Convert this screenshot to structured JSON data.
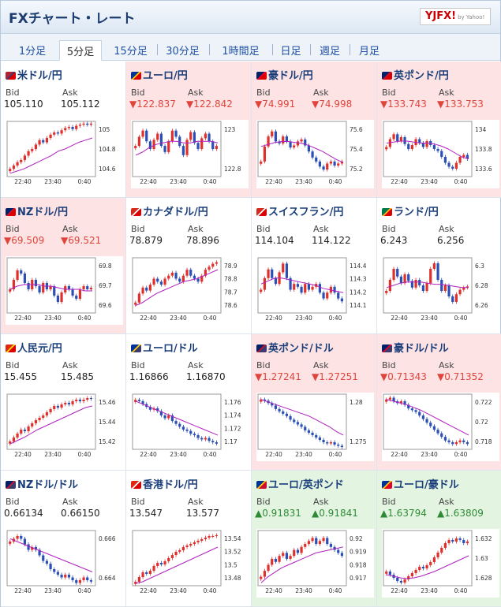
{
  "header": {
    "title": "FXチャート・レート",
    "logo_text": "YJFX!",
    "logo_sub": "by Yahoo!"
  },
  "tabs": [
    {
      "label": "1分足",
      "active": false
    },
    {
      "label": "5分足",
      "active": true
    },
    {
      "label": "15分足",
      "active": false
    },
    {
      "label": "30分足",
      "active": false
    },
    {
      "label": "1時間足",
      "active": false
    },
    {
      "label": "日足",
      "active": false
    },
    {
      "label": "週足",
      "active": false
    },
    {
      "label": "月足",
      "active": false
    }
  ],
  "labels": {
    "bid": "Bid",
    "ask": "Ask"
  },
  "colors": {
    "bull": "#e0302c",
    "bear": "#2c4fb6",
    "ma": "#b020c0",
    "down_bg": "#fde3e3",
    "up_bg": "#e3f5e1",
    "down_text": "#e0453d",
    "up_text": "#2e8a35"
  },
  "x_ticks": [
    "22:40",
    "23:40",
    "0:40"
  ],
  "pairs": [
    {
      "name": "米ドル/円",
      "flag": "us-jp-flag",
      "dir": "none",
      "bid": "105.110",
      "ask": "105.112",
      "y_ticks": [
        "105",
        "104.8",
        "104.6"
      ],
      "ylim": [
        104.55,
        105.05
      ],
      "candles": [
        104.62,
        104.65,
        104.68,
        104.7,
        104.74,
        104.78,
        104.8,
        104.84,
        104.88,
        104.86,
        104.9,
        104.93,
        104.95,
        104.94,
        104.97,
        104.99,
        105.0,
        104.98,
        105.01,
        105.02,
        105.03,
        105.02,
        105.03
      ],
      "ma": [
        104.58,
        104.6,
        104.62,
        104.65,
        104.68,
        104.71,
        104.74,
        104.78,
        104.8,
        104.83,
        104.86,
        104.88,
        104.9
      ]
    },
    {
      "name": "ユーロ/円",
      "flag": "eu-jp-flag",
      "dir": "down",
      "bid": "▼122.837",
      "ask": "▼122.842",
      "y_ticks": [
        "123",
        "122.8"
      ],
      "ylim": [
        122.72,
        123.08
      ],
      "candles": [
        122.92,
        122.98,
        123.02,
        122.95,
        122.9,
        122.96,
        123.0,
        122.92,
        122.88,
        122.95,
        123.02,
        122.98,
        122.92,
        122.86,
        122.96,
        123.01,
        122.94,
        122.9,
        122.97,
        123.0,
        122.95,
        122.9,
        122.92
      ],
      "ma": [
        122.86,
        122.88,
        122.91,
        122.93,
        122.94,
        122.95,
        122.95,
        122.94,
        122.94,
        122.95,
        122.95,
        122.95,
        122.94
      ]
    },
    {
      "name": "豪ドル/円",
      "flag": "au-jp-flag",
      "dir": "down",
      "bid": "▼74.991",
      "ask": "▼74.998",
      "y_ticks": [
        "75.6",
        "75.4",
        "75.2"
      ],
      "ylim": [
        75.15,
        75.7
      ],
      "candles": [
        75.3,
        75.45,
        75.55,
        75.6,
        75.5,
        75.48,
        75.55,
        75.5,
        75.44,
        75.46,
        75.5,
        75.52,
        75.46,
        75.4,
        75.34,
        75.3,
        75.25,
        75.22,
        75.28,
        75.3,
        75.26,
        75.28,
        75.3
      ],
      "ma": [
        75.45,
        75.47,
        75.49,
        75.5,
        75.5,
        75.49,
        75.48,
        75.46,
        75.43,
        75.4,
        75.36,
        75.32,
        75.29
      ]
    },
    {
      "name": "英ポンド/円",
      "flag": "gb-jp-flag",
      "dir": "down",
      "bid": "▼133.743",
      "ask": "▼133.753",
      "y_ticks": [
        "134",
        "133.8",
        "133.6"
      ],
      "ylim": [
        133.52,
        134.08
      ],
      "candles": [
        133.82,
        133.9,
        133.95,
        133.88,
        133.92,
        133.85,
        133.8,
        133.84,
        133.9,
        133.86,
        133.82,
        133.88,
        133.84,
        133.8,
        133.78,
        133.72,
        133.66,
        133.62,
        133.6,
        133.66,
        133.72,
        133.74,
        133.7
      ],
      "ma": [
        133.86,
        133.87,
        133.88,
        133.88,
        133.87,
        133.86,
        133.86,
        133.85,
        133.83,
        133.8,
        133.76,
        133.72,
        133.7
      ]
    },
    {
      "name": "NZドル/円",
      "flag": "nz-jp-flag",
      "dir": "down",
      "bid": "▼69.509",
      "ask": "▼69.521",
      "y_ticks": [
        "69.8",
        "69.7",
        "69.6"
      ],
      "ylim": [
        69.55,
        69.9
      ],
      "candles": [
        69.7,
        69.76,
        69.82,
        69.8,
        69.74,
        69.7,
        69.76,
        69.72,
        69.68,
        69.74,
        69.7,
        69.72,
        69.66,
        69.62,
        69.68,
        69.72,
        69.7,
        69.66,
        69.64,
        69.7,
        69.72,
        69.7,
        69.71
      ],
      "ma": [
        69.7,
        69.72,
        69.73,
        69.73,
        69.73,
        69.72,
        69.72,
        69.71,
        69.7,
        69.7,
        69.7,
        69.69,
        69.69
      ]
    },
    {
      "name": "カナダドル/円",
      "flag": "ca-jp-flag",
      "dir": "none",
      "bid": "78.879",
      "ask": "78.896",
      "y_ticks": [
        "78.9",
        "78.8",
        "78.7",
        "78.6"
      ],
      "ylim": [
        78.55,
        78.92
      ],
      "candles": [
        78.62,
        78.68,
        78.72,
        78.7,
        78.74,
        78.78,
        78.76,
        78.74,
        78.78,
        78.8,
        78.82,
        78.78,
        78.76,
        78.8,
        78.84,
        78.8,
        78.78,
        78.76,
        78.8,
        78.84,
        78.86,
        78.88,
        78.89
      ],
      "ma": [
        78.6,
        78.62,
        78.65,
        78.68,
        78.7,
        78.72,
        78.74,
        78.76,
        78.77,
        78.78,
        78.8,
        78.82,
        78.84
      ]
    },
    {
      "name": "スイスフラン/円",
      "flag": "ch-jp-flag",
      "dir": "none",
      "bid": "114.104",
      "ask": "114.122",
      "y_ticks": [
        "114.4",
        "114.3",
        "114.2",
        "114.1"
      ],
      "ylim": [
        114.06,
        114.44
      ],
      "candles": [
        114.22,
        114.3,
        114.36,
        114.3,
        114.26,
        114.34,
        114.4,
        114.3,
        114.22,
        114.26,
        114.24,
        114.2,
        114.26,
        114.22,
        114.24,
        114.26,
        114.2,
        114.16,
        114.2,
        114.24,
        114.2,
        114.16,
        114.14
      ],
      "ma": [
        114.26,
        114.28,
        114.3,
        114.3,
        114.29,
        114.28,
        114.27,
        114.26,
        114.25,
        114.23,
        114.22,
        114.21,
        114.2
      ]
    },
    {
      "name": "ランド/円",
      "flag": "za-jp-flag",
      "dir": "none",
      "bid": "6.243",
      "ask": "6.256",
      "y_ticks": [
        "6.3",
        "6.28",
        "6.26"
      ],
      "ylim": [
        6.255,
        6.305
      ],
      "candles": [
        6.275,
        6.285,
        6.295,
        6.288,
        6.282,
        6.29,
        6.284,
        6.278,
        6.285,
        6.28,
        6.275,
        6.282,
        6.295,
        6.3,
        6.285,
        6.275,
        6.28,
        6.27,
        6.265,
        6.272,
        6.276,
        6.278,
        6.279
      ],
      "ma": [
        6.278,
        6.28,
        6.282,
        6.283,
        6.283,
        6.283,
        6.282,
        6.281,
        6.281,
        6.28,
        6.279,
        6.278,
        6.278
      ]
    },
    {
      "name": "人民元/円",
      "flag": "cn-jp-flag",
      "dir": "none",
      "bid": "15.455",
      "ask": "15.485",
      "y_ticks": [
        "15.46",
        "15.44",
        "15.42"
      ],
      "ylim": [
        15.405,
        15.475
      ],
      "candles": [
        15.415,
        15.42,
        15.425,
        15.43,
        15.428,
        15.434,
        15.438,
        15.442,
        15.445,
        15.448,
        15.452,
        15.456,
        15.46,
        15.458,
        15.462,
        15.464,
        15.462,
        15.466,
        15.468,
        15.466,
        15.468,
        15.47,
        15.469
      ],
      "ma": [
        15.412,
        15.416,
        15.42,
        15.425,
        15.43,
        15.434,
        15.438,
        15.442,
        15.446,
        15.45,
        15.454,
        15.458,
        15.46
      ]
    },
    {
      "name": "ユーロ/ドル",
      "flag": "eu-us-flag",
      "dir": "none",
      "bid": "1.16866",
      "ask": "1.16870",
      "y_ticks": [
        "1.176",
        "1.174",
        "1.172",
        "1.17"
      ],
      "ylim": [
        1.169,
        1.1768
      ],
      "candles": [
        1.176,
        1.1758,
        1.1754,
        1.175,
        1.1746,
        1.1748,
        1.1744,
        1.1738,
        1.1734,
        1.1738,
        1.173,
        1.1726,
        1.1722,
        1.1718,
        1.1716,
        1.1712,
        1.171,
        1.1706,
        1.1704,
        1.1706,
        1.1702,
        1.17,
        1.1698
      ],
      "ma": [
        1.1758,
        1.1754,
        1.175,
        1.1746,
        1.1742,
        1.1738,
        1.1734,
        1.173,
        1.1726,
        1.1722,
        1.1718,
        1.1714,
        1.171
      ]
    },
    {
      "name": "英ポンド/ドル",
      "flag": "gb-us-flag",
      "dir": "down",
      "bid": "▼1.27241",
      "ask": "▼1.27251",
      "y_ticks": [
        "1.28",
        "1.275"
      ],
      "ylim": [
        1.2722,
        1.2815
      ],
      "candles": [
        1.2806,
        1.2804,
        1.28,
        1.2796,
        1.279,
        1.2786,
        1.2782,
        1.2778,
        1.2772,
        1.2768,
        1.2764,
        1.276,
        1.2754,
        1.275,
        1.2746,
        1.2742,
        1.2738,
        1.2734,
        1.2732,
        1.2734,
        1.273,
        1.2728,
        1.2726
      ],
      "ma": [
        1.2806,
        1.2802,
        1.2798,
        1.2794,
        1.279,
        1.2786,
        1.2782,
        1.2778,
        1.2772,
        1.2766,
        1.276,
        1.2752,
        1.2746
      ]
    },
    {
      "name": "豪ドル/ドル",
      "flag": "au-us-flag",
      "dir": "down",
      "bid": "▼0.71343",
      "ask": "▼0.71352",
      "y_ticks": [
        "0.722",
        "0.72",
        "0.718"
      ],
      "ylim": [
        0.7168,
        0.723
      ],
      "candles": [
        0.7224,
        0.7226,
        0.7222,
        0.722,
        0.7222,
        0.7218,
        0.7214,
        0.7212,
        0.721,
        0.7206,
        0.7202,
        0.7198,
        0.7194,
        0.719,
        0.7186,
        0.7182,
        0.7178,
        0.7176,
        0.7174,
        0.7176,
        0.7178,
        0.7176,
        0.7174
      ],
      "ma": [
        0.7224,
        0.7222,
        0.722,
        0.7218,
        0.7215,
        0.7212,
        0.7208,
        0.7204,
        0.72,
        0.7196,
        0.7192,
        0.7188,
        0.7184
      ]
    },
    {
      "name": "NZドル/ドル",
      "flag": "nz-us-flag",
      "dir": "none",
      "bid": "0.66134",
      "ask": "0.66150",
      "y_ticks": [
        "0.666",
        "0.664"
      ],
      "ylim": [
        0.6632,
        0.6672
      ],
      "candles": [
        0.6664,
        0.6666,
        0.6668,
        0.6666,
        0.6662,
        0.6658,
        0.666,
        0.6658,
        0.6654,
        0.665,
        0.6648,
        0.6644,
        0.6642,
        0.664,
        0.6638,
        0.664,
        0.6638,
        0.6636,
        0.6634,
        0.6636,
        0.6638,
        0.6636,
        0.6635
      ],
      "ma": [
        0.6666,
        0.6664,
        0.6662,
        0.666,
        0.6658,
        0.6656,
        0.6654,
        0.6652,
        0.665,
        0.6648,
        0.6646,
        0.6644,
        0.6642
      ]
    },
    {
      "name": "香港ドル/円",
      "flag": "hk-jp-flag",
      "dir": "none",
      "bid": "13.547",
      "ask": "13.577",
      "y_ticks": [
        "13.54",
        "13.52",
        "13.5",
        "13.48"
      ],
      "ylim": [
        13.475,
        13.545
      ],
      "candles": [
        13.48,
        13.486,
        13.492,
        13.49,
        13.494,
        13.5,
        13.504,
        13.502,
        13.506,
        13.51,
        13.514,
        13.518,
        13.52,
        13.524,
        13.526,
        13.528,
        13.53,
        13.532,
        13.534,
        13.536,
        13.538,
        13.538,
        13.539
      ],
      "ma": [
        13.478,
        13.48,
        13.484,
        13.488,
        13.492,
        13.496,
        13.5,
        13.504,
        13.508,
        13.512,
        13.516,
        13.52,
        13.524
      ]
    },
    {
      "name": "ユーロ/英ポンド",
      "flag": "eu-gb-flag",
      "dir": "up",
      "bid": "▲0.91831",
      "ask": "▲0.91841",
      "y_ticks": [
        "0.92",
        "0.919",
        "0.918",
        "0.917"
      ],
      "ylim": [
        0.9166,
        0.9203
      ],
      "candles": [
        0.9172,
        0.9176,
        0.918,
        0.9184,
        0.9182,
        0.9186,
        0.9188,
        0.9184,
        0.9186,
        0.919,
        0.9188,
        0.9192,
        0.9194,
        0.9196,
        0.9198,
        0.9194,
        0.9196,
        0.9198,
        0.9194,
        0.9192,
        0.919,
        0.9188,
        0.9186
      ],
      "ma": [
        0.9168,
        0.9172,
        0.9175,
        0.9178,
        0.918,
        0.9182,
        0.9184,
        0.9186,
        0.9188,
        0.9189,
        0.919,
        0.9191,
        0.9192
      ]
    },
    {
      "name": "ユーロ/豪ドル",
      "flag": "eu-au-flag",
      "dir": "up",
      "bid": "▲1.63794",
      "ask": "▲1.63809",
      "y_ticks": [
        "1.632",
        "1.63",
        "1.628"
      ],
      "ylim": [
        1.6262,
        1.6332
      ],
      "candles": [
        1.628,
        1.6276,
        1.6272,
        1.6268,
        1.6266,
        1.627,
        1.6274,
        1.6278,
        1.6282,
        1.6286,
        1.6284,
        1.6288,
        1.6292,
        1.6298,
        1.6304,
        1.631,
        1.6316,
        1.632,
        1.6318,
        1.6322,
        1.632,
        1.6316,
        1.6318
      ],
      "ma": [
        1.6276,
        1.6274,
        1.6272,
        1.6271,
        1.6272,
        1.6274,
        1.6277,
        1.628,
        1.6284,
        1.6288,
        1.6292,
        1.6296,
        1.63
      ]
    }
  ]
}
